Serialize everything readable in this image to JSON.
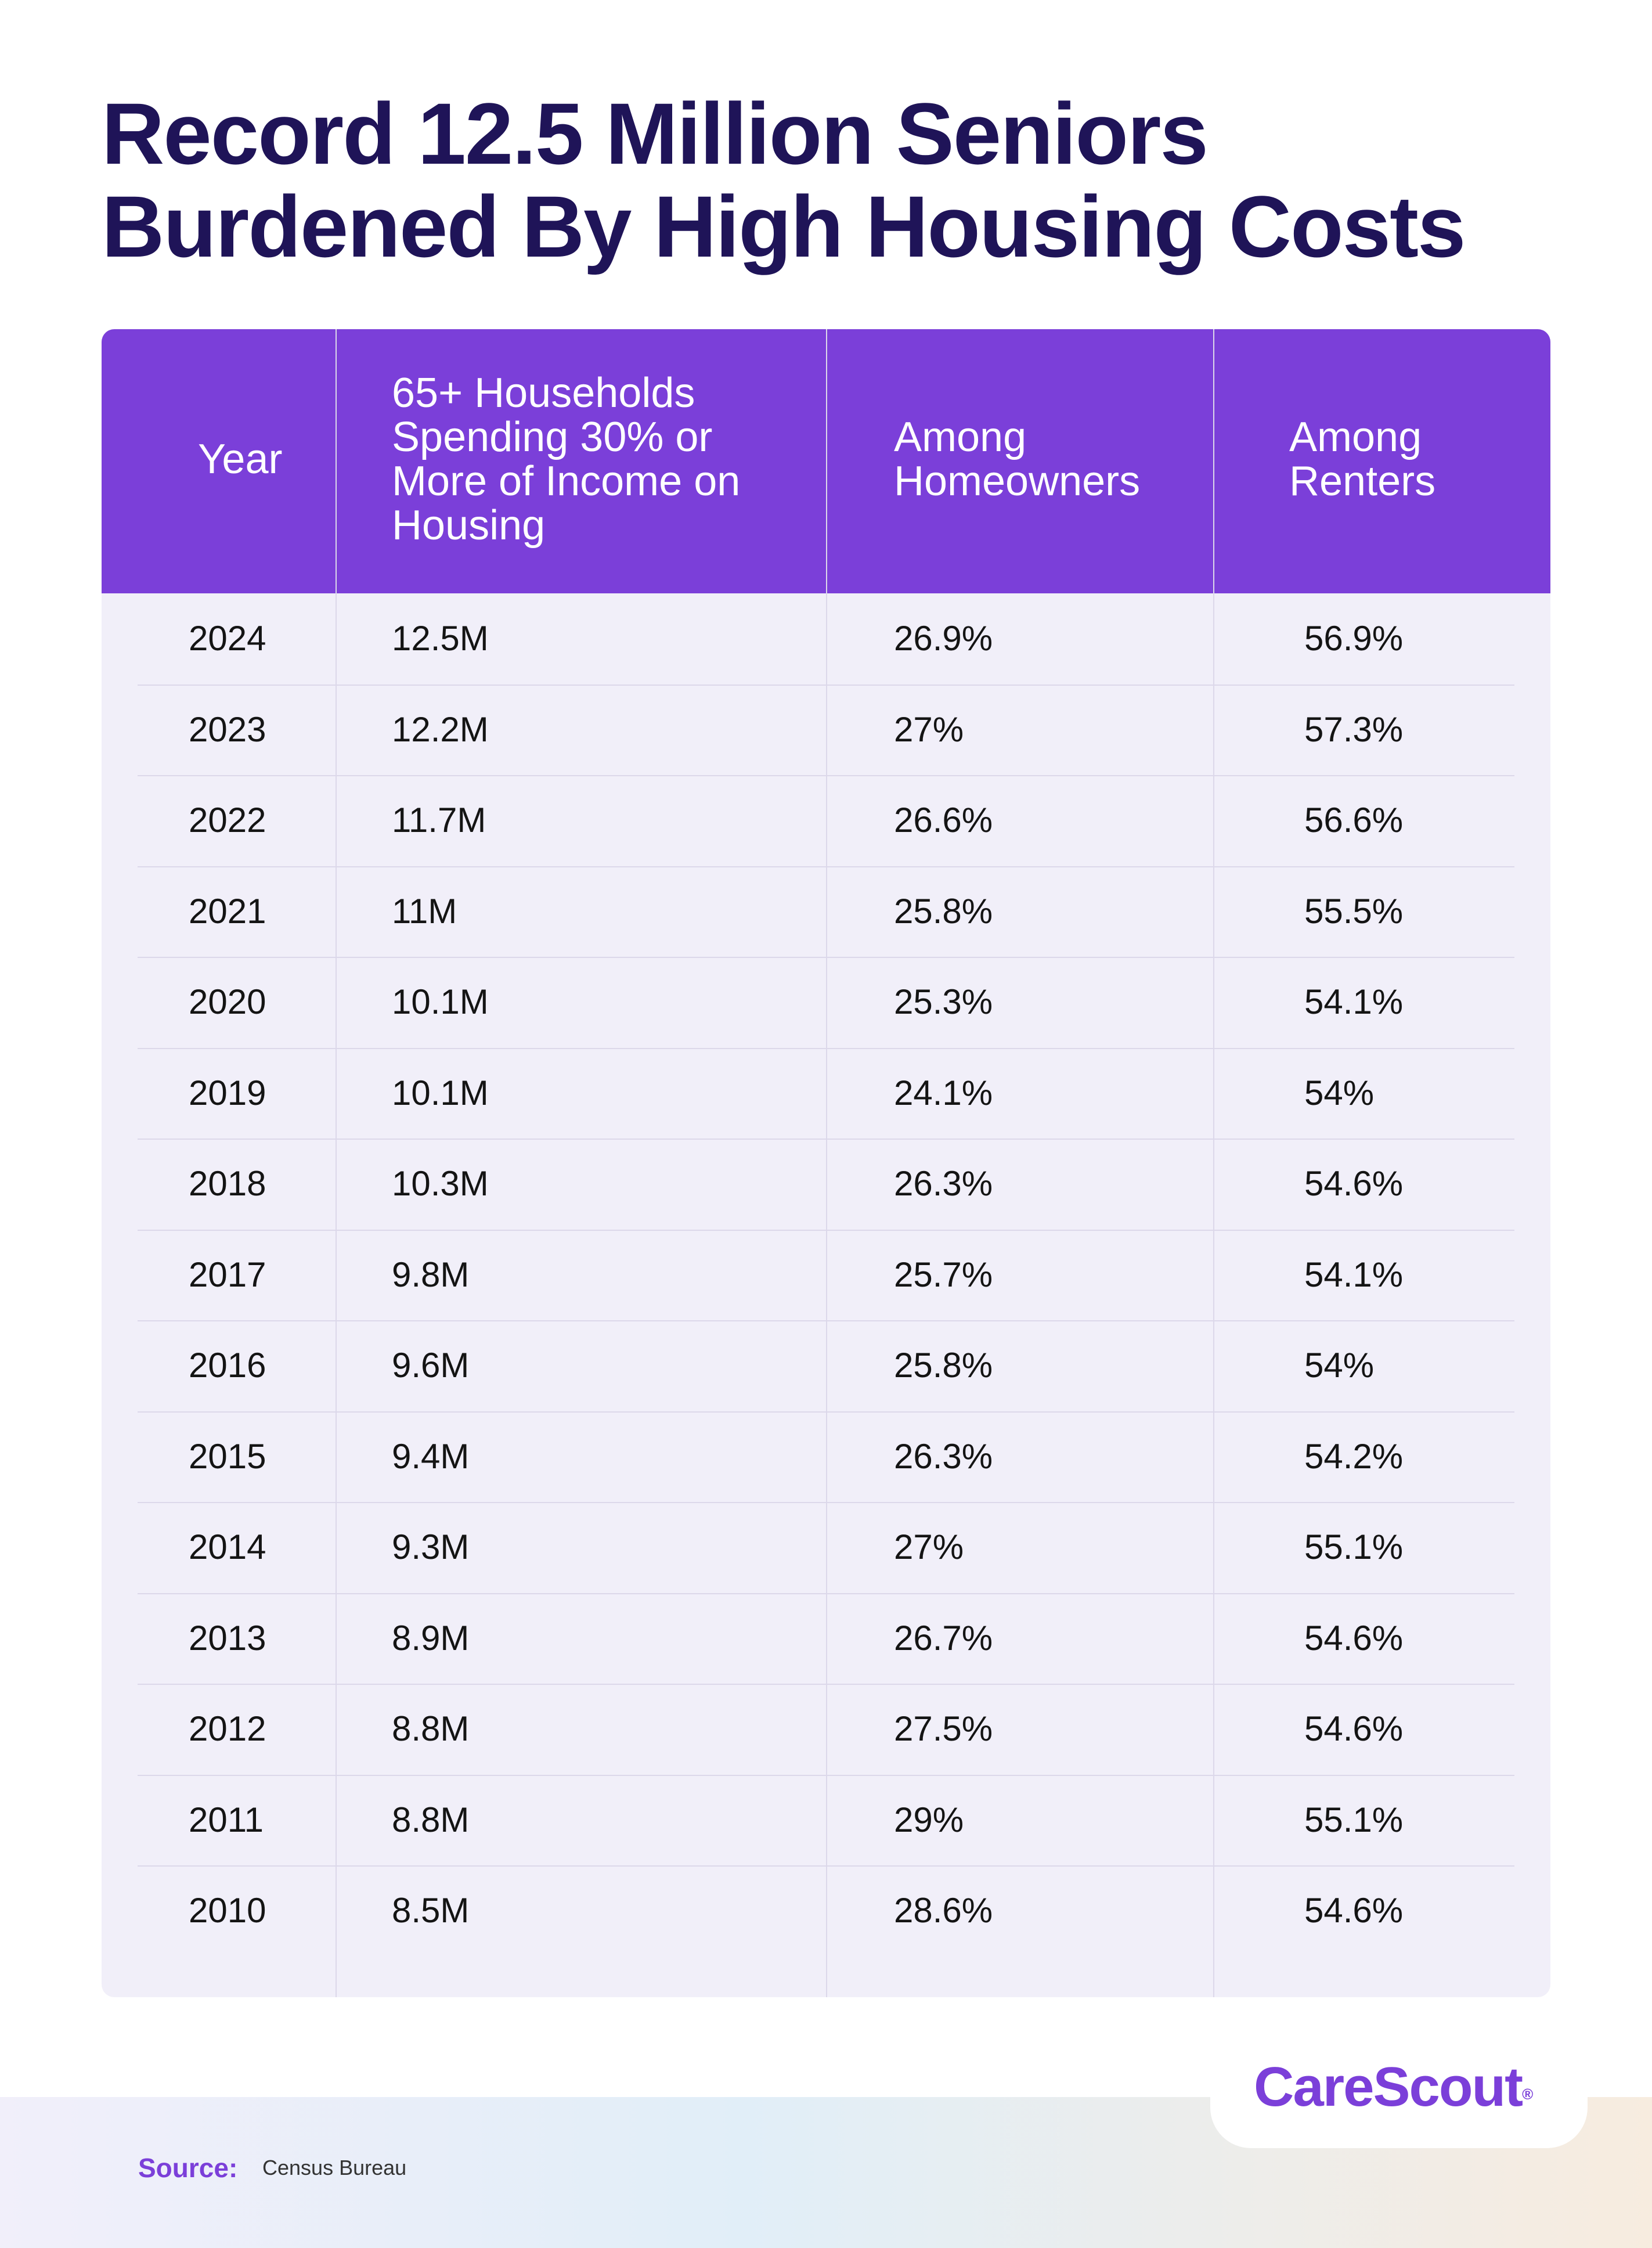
{
  "title": {
    "line1": "Record 12.5 Million Seniors",
    "line2": "Burdened By High Housing Costs"
  },
  "chart_data": {
    "type": "table",
    "columns": [
      "Year",
      "65+ Households Spending 30% or More of Income on Housing",
      "Among Homeowners",
      "Among Renters"
    ],
    "rows": [
      [
        "2024",
        "12.5M",
        "26.9%",
        "56.9%"
      ],
      [
        "2023",
        "12.2M",
        "27%",
        "57.3%"
      ],
      [
        "2022",
        "11.7M",
        "26.6%",
        "56.6%"
      ],
      [
        "2021",
        "11M",
        "25.8%",
        "55.5%"
      ],
      [
        "2020",
        "10.1M",
        "25.3%",
        "54.1%"
      ],
      [
        "2019",
        "10.1M",
        "24.1%",
        "54%"
      ],
      [
        "2018",
        "10.3M",
        "26.3%",
        "54.6%"
      ],
      [
        "2017",
        "9.8M",
        "25.7%",
        "54.1%"
      ],
      [
        "2016",
        "9.6M",
        "25.8%",
        "54%"
      ],
      [
        "2015",
        "9.4M",
        "26.3%",
        "54.2%"
      ],
      [
        "2014",
        "9.3M",
        "27%",
        "55.1%"
      ],
      [
        "2013",
        "8.9M",
        "26.7%",
        "54.6%"
      ],
      [
        "2012",
        "8.8M",
        "27.5%",
        "54.6%"
      ],
      [
        "2011",
        "8.8M",
        "29%",
        "55.1%"
      ],
      [
        "2010",
        "8.5M",
        "28.6%",
        "54.6%"
      ]
    ]
  },
  "table_header": {
    "year": "Year",
    "households": [
      "65+ Households",
      "Spending 30% or",
      "More of Income on",
      "Housing"
    ],
    "homeowners": [
      "Among",
      "Homeowners"
    ],
    "renters": [
      "Among",
      "Renters"
    ]
  },
  "logo": {
    "text": "CareScout",
    "mark": "®"
  },
  "source": {
    "label": "Source:",
    "value": "Census Bureau"
  },
  "colors": {
    "title": "#1f1458",
    "header_bg": "#7b3fd9",
    "table_bg": "#f1eff9",
    "accent": "#7b3fd9"
  }
}
